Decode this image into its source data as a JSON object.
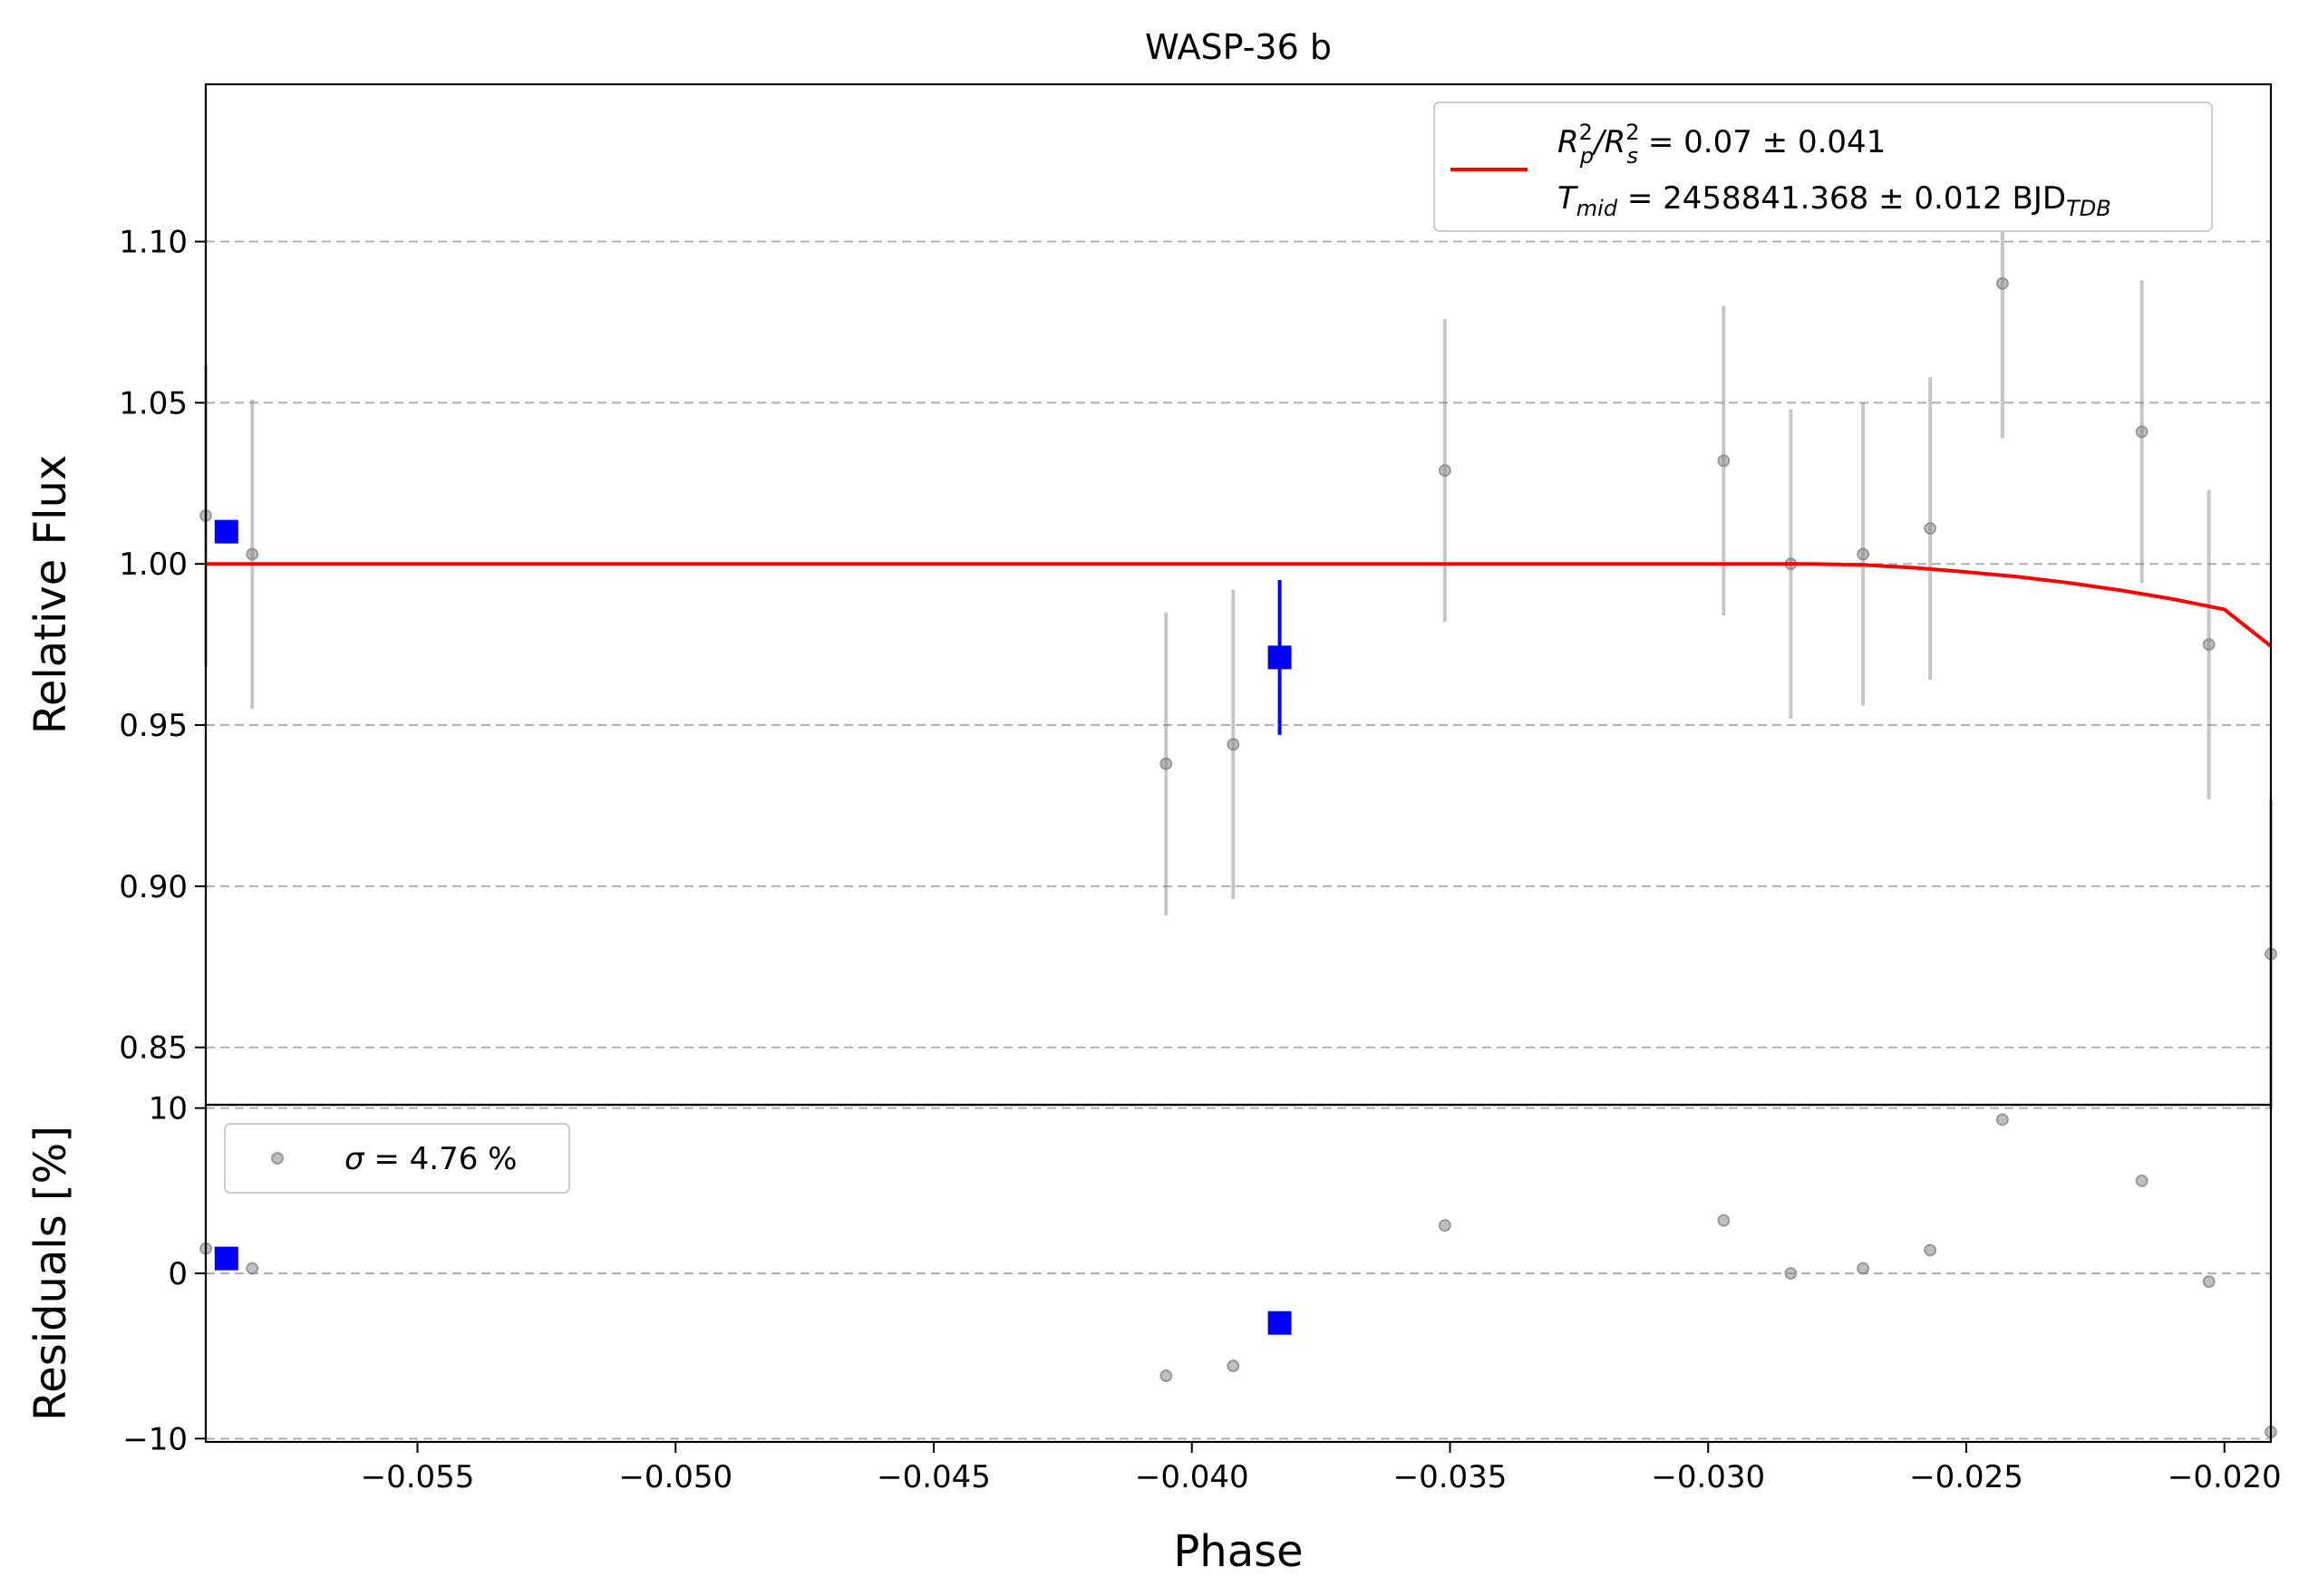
{
  "chart_data": {
    "type": "scatter",
    "title": "WASP-36 b",
    "xlabel": "Phase",
    "xlim": [
      -0.0591,
      -0.0191
    ],
    "xticks": [
      -0.055,
      -0.05,
      -0.045,
      -0.04,
      -0.035,
      -0.03,
      -0.025,
      -0.02
    ],
    "xtick_labels": [
      "−0.055",
      "−0.050",
      "−0.045",
      "−0.040",
      "−0.035",
      "−0.030",
      "−0.025",
      "−0.020"
    ],
    "grid": "horizontal dashed",
    "panels": [
      {
        "name": "flux",
        "ylabel": "Relative Flux",
        "ylim": [
          0.8322,
          1.1488
        ],
        "yticks": [
          0.85,
          0.9,
          0.95,
          1.0,
          1.05,
          1.1
        ],
        "ytick_labels": [
          "0.85",
          "0.90",
          "0.95",
          "1.00",
          "1.05",
          "1.10"
        ],
        "legend_position": "upper-right",
        "legend": [
          {
            "base": "R",
            "sup1": "2",
            "sub1": "p",
            "slash": "/R",
            "sup2": "2",
            "sub2": "s",
            "rest": " = 0.07 ± 0.041"
          },
          {
            "base": "T",
            "sub1": "mid",
            "rest": " = 2458841.368 ± 0.012 BJD",
            "sub2": "TDB"
          }
        ],
        "series": [
          {
            "kind": "data",
            "color": "#808080",
            "points": [
              {
                "x": -0.0591,
                "y": 1.015,
                "err": 0.047
              },
              {
                "x": -0.0582,
                "y": 1.003,
                "err": 0.048
              },
              {
                "x": -0.0405,
                "y": 0.938,
                "err": 0.047
              },
              {
                "x": -0.0392,
                "y": 0.944,
                "err": 0.048
              },
              {
                "x": -0.0351,
                "y": 1.029,
                "err": 0.047
              },
              {
                "x": -0.0297,
                "y": 1.032,
                "err": 0.048
              },
              {
                "x": -0.0284,
                "y": 1.0,
                "err": 0.048
              },
              {
                "x": -0.027,
                "y": 1.003,
                "err": 0.047
              },
              {
                "x": -0.0257,
                "y": 1.011,
                "err": 0.047
              },
              {
                "x": -0.0243,
                "y": 1.087,
                "err": 0.048
              },
              {
                "x": -0.0216,
                "y": 1.041,
                "err": 0.047
              },
              {
                "x": -0.0203,
                "y": 0.975,
                "err": 0.048
              },
              {
                "x": -0.0191,
                "y": 0.879,
                "err": 0.048
              }
            ]
          },
          {
            "kind": "binned",
            "color": "#0000ff",
            "points": [
              {
                "x": -0.0587,
                "y": 1.01,
                "err": 0.0
              },
              {
                "x": -0.0383,
                "y": 0.971,
                "err": 0.024
              }
            ]
          },
          {
            "kind": "model",
            "color": "#ff0000",
            "x": [
              -0.0591,
              -0.03,
              -0.028,
              -0.027,
              -0.026,
              -0.025,
              -0.024,
              -0.023,
              -0.022,
              -0.021,
              -0.02,
              -0.0191
            ],
            "y": [
              1.0,
              1.0,
              1.0,
              0.9997,
              0.9988,
              0.9975,
              0.996,
              0.9941,
              0.9918,
              0.9891,
              0.9859,
              0.9745
            ]
          }
        ]
      },
      {
        "name": "residuals",
        "ylabel": "Residuals [%]",
        "ylim": [
          -10.2,
          10.2
        ],
        "yticks": [
          -10,
          0,
          10
        ],
        "ytick_labels": [
          "−10",
          "0",
          "10"
        ],
        "legend_position": "upper-left",
        "legend": [
          {
            "base": "σ",
            "rest": " = 4.76 %"
          }
        ],
        "series": [
          {
            "kind": "data",
            "color": "#808080",
            "points": [
              {
                "x": -0.0591,
                "y": 1.5
              },
              {
                "x": -0.0582,
                "y": 0.3
              },
              {
                "x": -0.0405,
                "y": -6.2
              },
              {
                "x": -0.0392,
                "y": -5.6
              },
              {
                "x": -0.0351,
                "y": 2.9
              },
              {
                "x": -0.0297,
                "y": 3.2
              },
              {
                "x": -0.0284,
                "y": 0.0
              },
              {
                "x": -0.027,
                "y": 0.3
              },
              {
                "x": -0.0257,
                "y": 1.4
              },
              {
                "x": -0.0243,
                "y": 9.3
              },
              {
                "x": -0.0216,
                "y": 5.6
              },
              {
                "x": -0.0203,
                "y": -0.5
              },
              {
                "x": -0.0191,
                "y": -9.6
              }
            ]
          },
          {
            "kind": "binned",
            "color": "#0000ff",
            "points": [
              {
                "x": -0.0587,
                "y": 0.9
              },
              {
                "x": -0.0383,
                "y": -3.0
              }
            ]
          }
        ]
      }
    ]
  }
}
